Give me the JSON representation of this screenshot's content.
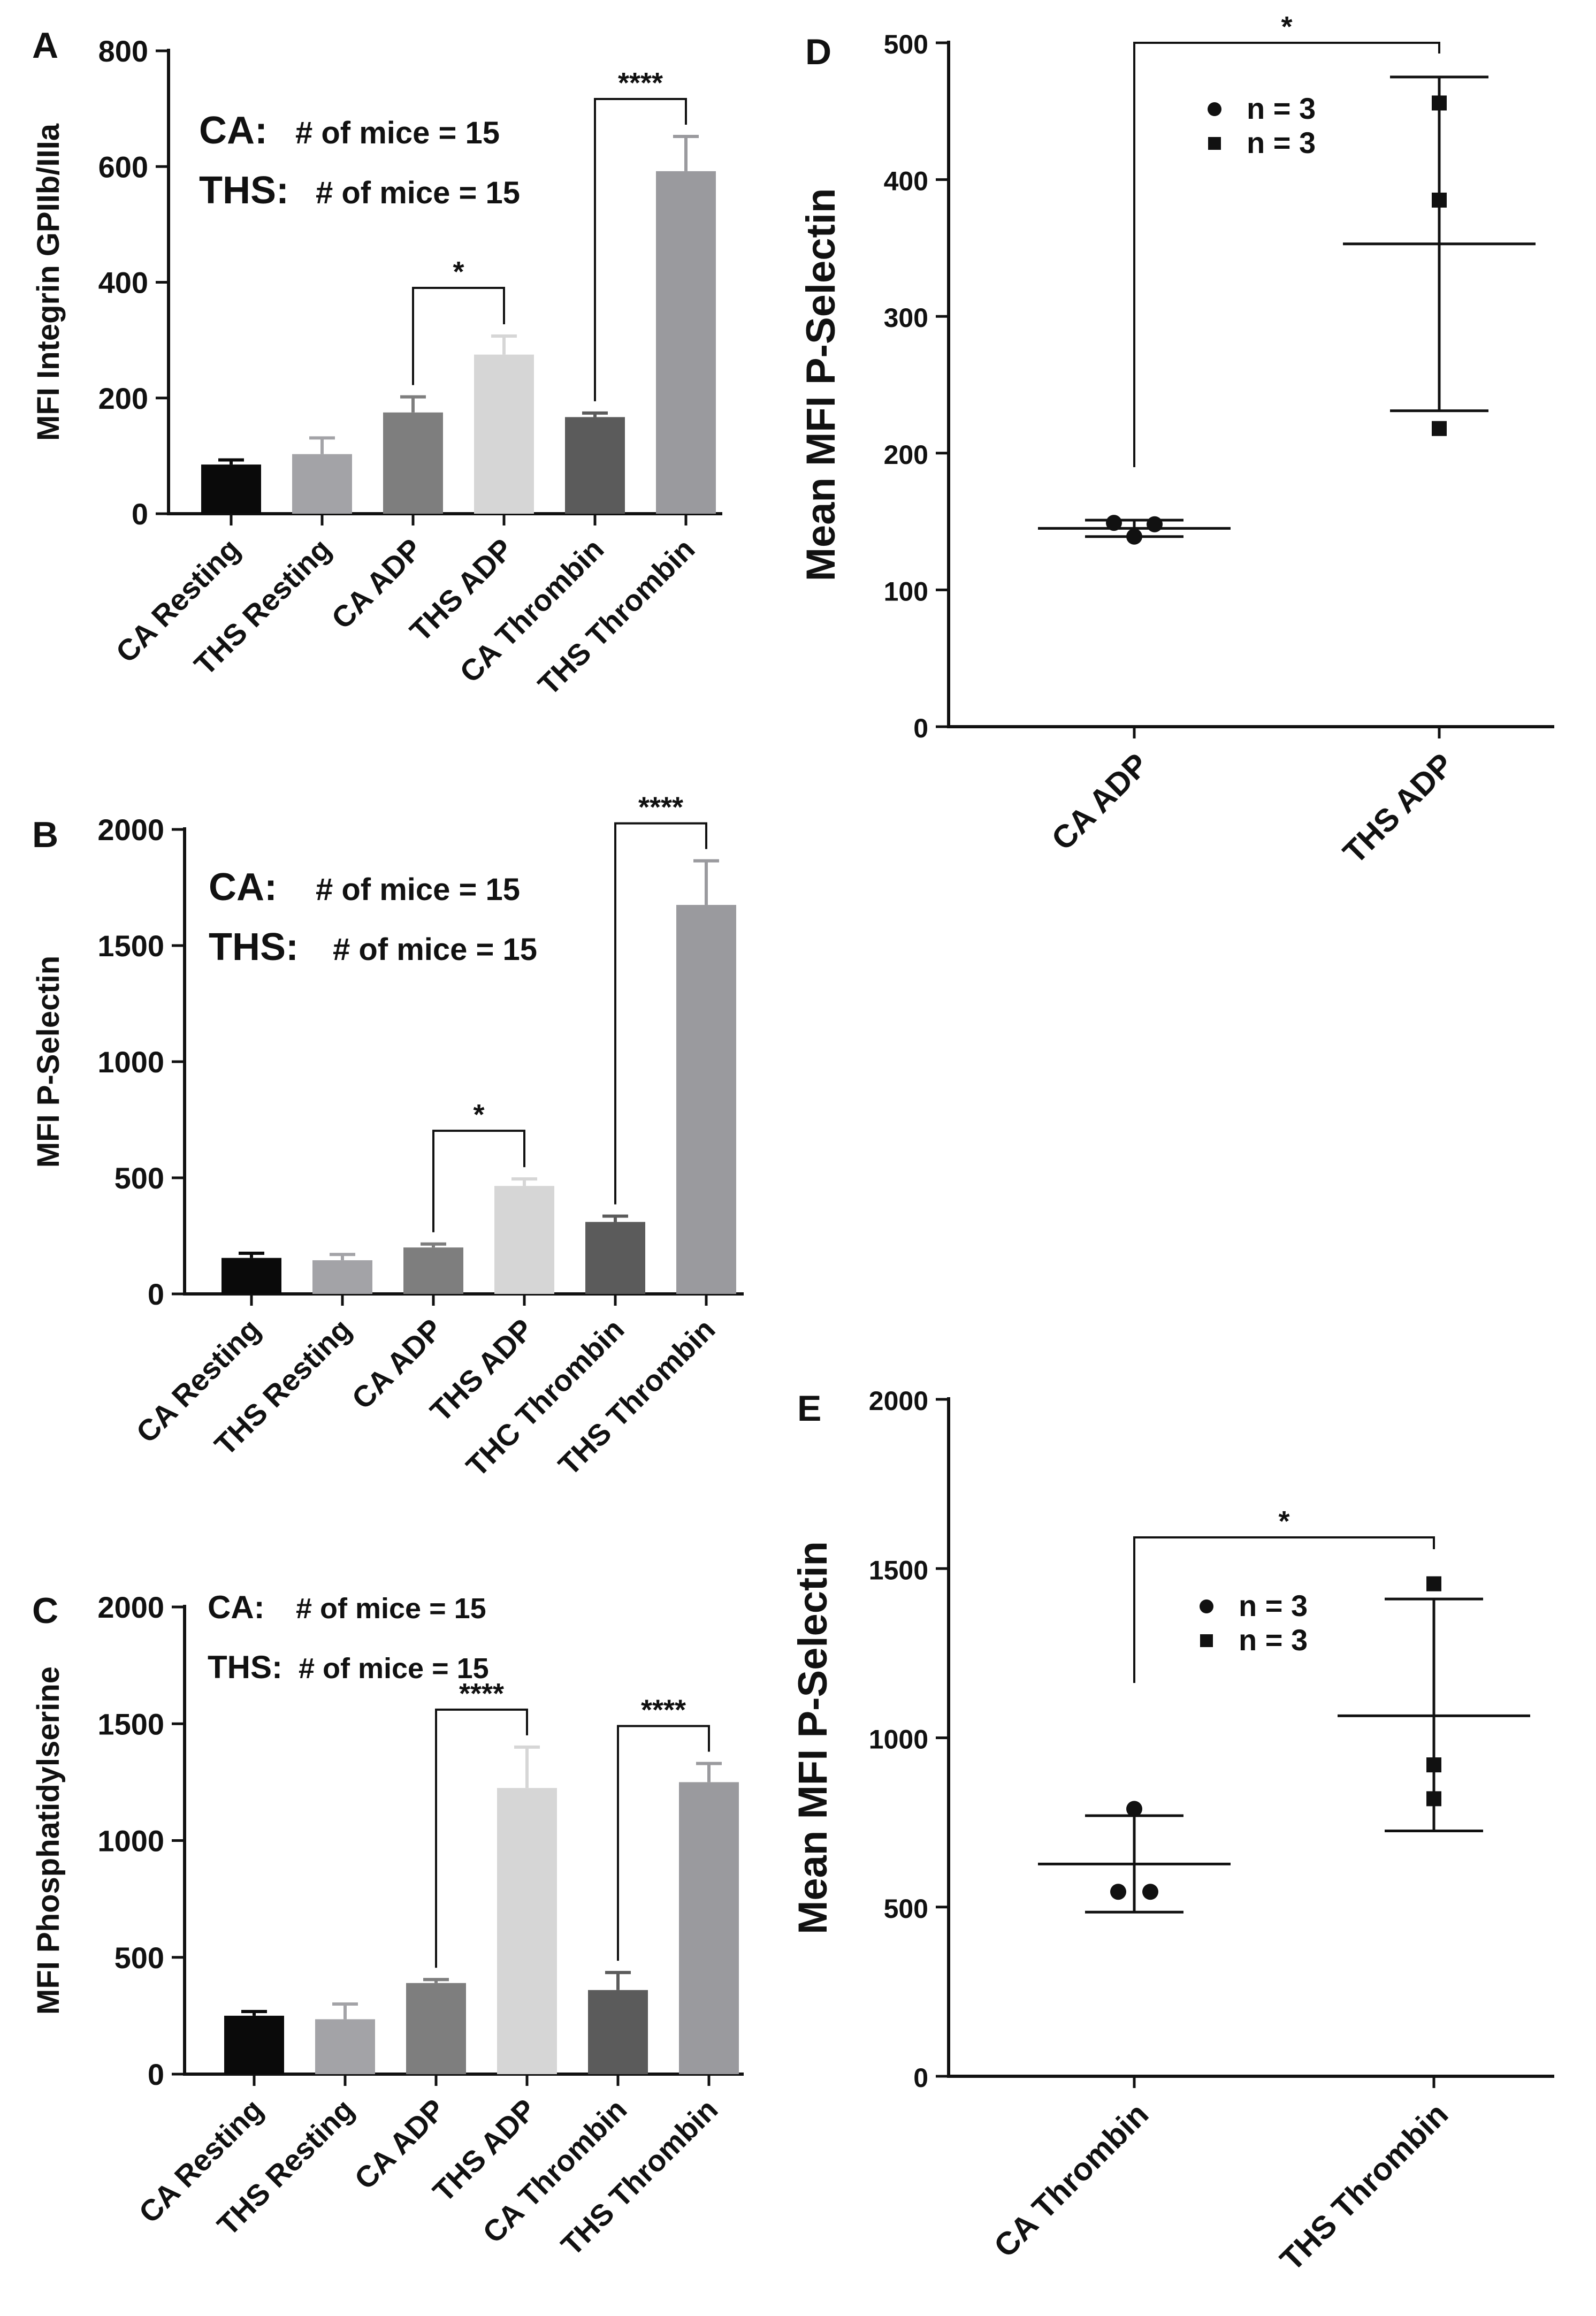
{
  "colors": {
    "axis": "#111111",
    "ca_resting": "#0a0a0a",
    "ths_resting": "#a3a3a7",
    "ca_adp": "#7e7e7e",
    "ths_adp": "#d6d6d6",
    "ca_thrombin": "#5b5b5b",
    "ths_thrombin": "#9a9a9e"
  },
  "chart_data": [
    {
      "panel": "A",
      "type": "bar",
      "ylabel": "MFI Integrin GPIIb/IIIa",
      "ylim": [
        0,
        800
      ],
      "yticks": [
        0,
        200,
        400,
        600,
        800
      ],
      "categories": [
        "CA Resting",
        "THS Resting",
        "CA  ADP",
        "THS ADP",
        "CA Thrombin",
        "THS Thrombin"
      ],
      "values": [
        85,
        103,
        175,
        275,
        167,
        592
      ],
      "errors": [
        8,
        28,
        27,
        32,
        7,
        60
      ],
      "legend": [
        {
          "group": "CA:",
          "text": "# of mice = 15"
        },
        {
          "group": "THS:",
          "text": "# of mice = 15"
        }
      ],
      "significance": [
        {
          "pair": [
            2,
            3
          ],
          "label": "*"
        },
        {
          "pair": [
            4,
            5
          ],
          "label": "****"
        }
      ]
    },
    {
      "panel": "B",
      "type": "bar",
      "ylabel": "MFI P-Selectin",
      "ylim": [
        0,
        2000
      ],
      "yticks": [
        0,
        500,
        1000,
        1500,
        2000
      ],
      "categories": [
        "CA Resting",
        "THS Resting",
        "CA ADP",
        "THS ADP",
        "THC Thrombin",
        "THS Thrombin"
      ],
      "values": [
        155,
        145,
        200,
        465,
        310,
        1675
      ],
      "errors": [
        20,
        25,
        15,
        30,
        25,
        190
      ],
      "legend": [
        {
          "group": "CA:",
          "text": "# of mice = 15"
        },
        {
          "group": "THS:",
          "text": "# of mice = 15"
        }
      ],
      "significance": [
        {
          "pair": [
            2,
            3
          ],
          "label": "*"
        },
        {
          "pair": [
            4,
            5
          ],
          "label": "****"
        }
      ]
    },
    {
      "panel": "C",
      "type": "bar",
      "ylabel": "MFI Phosphatidylserine",
      "ylim": [
        0,
        2000
      ],
      "yticks": [
        0,
        500,
        1000,
        1500,
        2000
      ],
      "categories": [
        "CA Resting",
        "THS Resting",
        "CA ADP",
        "THS ADP",
        "CA Thrombin",
        "THS Thrombin"
      ],
      "values": [
        250,
        235,
        390,
        1225,
        360,
        1250
      ],
      "errors": [
        18,
        65,
        15,
        175,
        75,
        80
      ],
      "legend": [
        {
          "group": "CA:",
          "text": "# of mice = 15"
        },
        {
          "group": "THS:",
          "text": "# of mice = 15"
        }
      ],
      "significance": [
        {
          "pair": [
            2,
            3
          ],
          "label": "****"
        },
        {
          "pair": [
            4,
            5
          ],
          "label": "****"
        }
      ]
    },
    {
      "panel": "D",
      "type": "scatter",
      "ylabel": "Mean MFI P-Selectin",
      "ylim": [
        0,
        500
      ],
      "yticks": [
        0,
        100,
        200,
        300,
        400,
        500
      ],
      "categories": [
        "CA ADP",
        "THS ADP"
      ],
      "series": [
        {
          "name": "CA ADP",
          "marker": "circle",
          "points": [
            149,
            148,
            139
          ],
          "mean": 145,
          "sd_low": 139,
          "sd_high": 151
        },
        {
          "name": "THS ADP",
          "marker": "square",
          "points": [
            456,
            385,
            218
          ],
          "mean": 353,
          "sd_low": 231,
          "sd_high": 475
        }
      ],
      "legend": [
        {
          "marker": "circle",
          "text": "n = 3"
        },
        {
          "marker": "square",
          "text": "n = 3"
        }
      ],
      "significance": [
        {
          "pair": [
            0,
            1
          ],
          "label": "*"
        }
      ]
    },
    {
      "panel": "E",
      "type": "scatter",
      "ylabel": "Mean MFI P-Selectin",
      "ylim": [
        0,
        2000
      ],
      "yticks": [
        0,
        500,
        1000,
        1500,
        2000
      ],
      "categories": [
        "CA Thrombin",
        "THS Thrombin"
      ],
      "series": [
        {
          "name": "CA Thrombin",
          "marker": "circle",
          "points": [
            790,
            545,
            545
          ],
          "mean": 627,
          "sd_low": 485,
          "sd_high": 770
        },
        {
          "name": "THS Thrombin",
          "marker": "square",
          "points": [
            1455,
            920,
            820
          ],
          "mean": 1065,
          "sd_low": 725,
          "sd_high": 1410
        }
      ],
      "legend": [
        {
          "marker": "circle",
          "text": "n = 3"
        },
        {
          "marker": "square",
          "text": "n = 3"
        }
      ],
      "significance": [
        {
          "pair": [
            0,
            1
          ],
          "label": "*"
        }
      ]
    }
  ]
}
